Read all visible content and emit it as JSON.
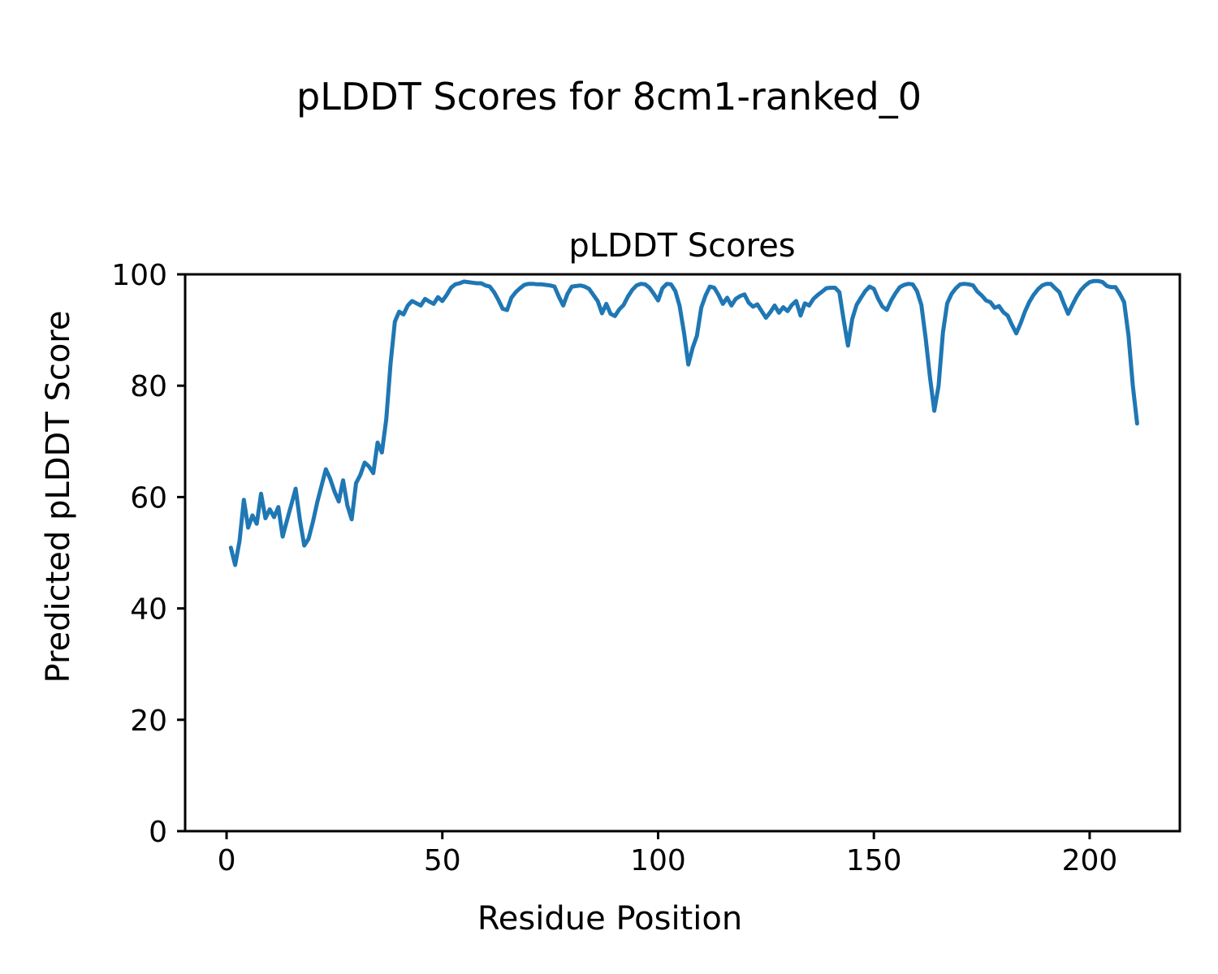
{
  "figure": {
    "suptitle": "pLDDT Scores for 8cm1-ranked_0"
  },
  "chart_data": {
    "type": "line",
    "title": "pLDDT Scores",
    "suptitle": "pLDDT Scores for 8cm1-ranked_0",
    "xlabel": "Residue Position",
    "ylabel": "Predicted pLDDT Score",
    "x_start": 1,
    "x_step": 1,
    "xlim": [
      -9.6,
      220.9
    ],
    "ylim": [
      0,
      100
    ],
    "xticks": [
      0,
      50,
      100,
      150,
      200
    ],
    "yticks": [
      0,
      20,
      40,
      60,
      80,
      100
    ],
    "grid": false,
    "legend": null,
    "line_color": "#1f77b4",
    "background_color": "#ffffff",
    "values": [
      50.9,
      47.8,
      52.1,
      59.5,
      54.5,
      56.7,
      55.2,
      60.6,
      56.2,
      57.8,
      56.4,
      58.2,
      52.9,
      55.8,
      58.6,
      61.5,
      55.8,
      51.3,
      52.5,
      55.5,
      59.0,
      62.0,
      65.0,
      63.3,
      61.0,
      59.2,
      63.0,
      58.5,
      56.0,
      62.5,
      64.0,
      66.2,
      65.5,
      64.3,
      69.8,
      68.0,
      74.0,
      84.0,
      91.5,
      93.3,
      92.8,
      94.4,
      95.2,
      94.8,
      94.4,
      95.6,
      95.1,
      94.7,
      95.9,
      95.2,
      96.3,
      97.6,
      98.2,
      98.4,
      98.7,
      98.6,
      98.5,
      98.4,
      98.4,
      98.0,
      97.8,
      96.8,
      95.4,
      93.8,
      93.6,
      95.8,
      96.8,
      97.5,
      98.1,
      98.3,
      98.3,
      98.2,
      98.2,
      98.1,
      98.0,
      97.8,
      96.0,
      94.4,
      96.5,
      97.8,
      97.9,
      98.0,
      97.8,
      97.4,
      96.3,
      95.2,
      93.0,
      94.7,
      92.9,
      92.5,
      93.7,
      94.5,
      96.0,
      97.2,
      98.0,
      98.3,
      98.2,
      97.6,
      96.5,
      95.3,
      97.5,
      98.3,
      98.2,
      97.0,
      94.3,
      89.5,
      83.8,
      86.8,
      89.0,
      94.0,
      96.2,
      97.8,
      97.6,
      96.3,
      94.7,
      95.8,
      94.4,
      95.6,
      96.1,
      96.4,
      94.9,
      94.2,
      94.6,
      93.4,
      92.2,
      93.2,
      94.4,
      93.1,
      94.1,
      93.4,
      94.5,
      95.2,
      92.6,
      94.8,
      94.4,
      95.6,
      96.3,
      96.9,
      97.5,
      97.6,
      97.6,
      96.8,
      91.8,
      87.2,
      92.0,
      94.5,
      95.8,
      97.0,
      97.8,
      97.4,
      95.6,
      94.2,
      93.6,
      95.3,
      96.6,
      97.7,
      98.1,
      98.3,
      98.2,
      97.0,
      94.5,
      88.5,
      81.5,
      75.5,
      80.0,
      89.5,
      94.8,
      96.5,
      97.5,
      98.2,
      98.3,
      98.2,
      98.0,
      96.9,
      96.2,
      95.3,
      95.0,
      94.0,
      94.3,
      93.2,
      92.6,
      90.9,
      89.4,
      91.2,
      93.3,
      95.0,
      96.3,
      97.3,
      98.0,
      98.3,
      98.3,
      97.5,
      96.8,
      94.8,
      92.9,
      94.5,
      96.0,
      97.2,
      98.0,
      98.6,
      98.8,
      98.8,
      98.6,
      97.9,
      97.7,
      97.7,
      96.5,
      95.0,
      89.0,
      80.0,
      73.2
    ]
  }
}
